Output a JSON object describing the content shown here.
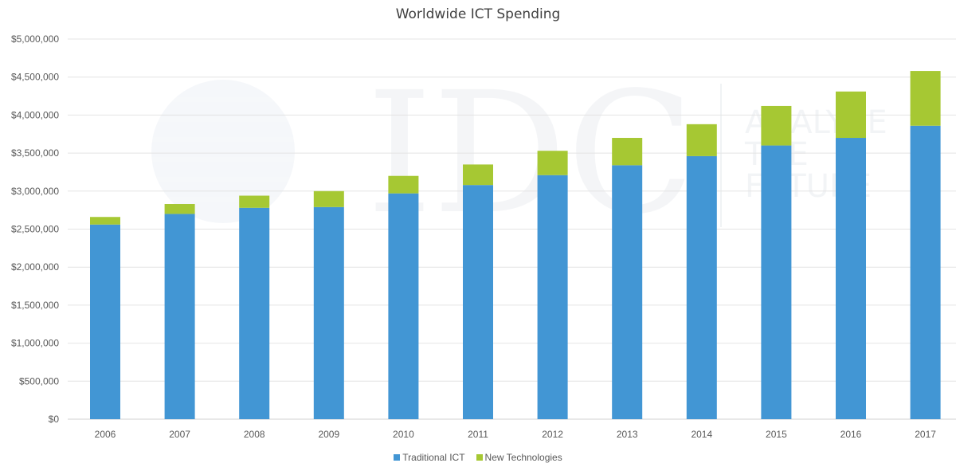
{
  "chart_data": {
    "type": "bar",
    "stacked": true,
    "title": "Worldwide ICT Spending",
    "xlabel": "",
    "ylabel": "",
    "categories": [
      "2006",
      "2007",
      "2008",
      "2009",
      "2010",
      "2011",
      "2012",
      "2013",
      "2014",
      "2015",
      "2016",
      "2017"
    ],
    "series": [
      {
        "name": "Traditional ICT",
        "color": "#4296d4",
        "values": [
          2560000,
          2700000,
          2780000,
          2790000,
          2970000,
          3080000,
          3210000,
          3340000,
          3460000,
          3600000,
          3700000,
          3860000
        ]
      },
      {
        "name": "New Technologies",
        "color": "#a6c833",
        "values": [
          100000,
          130000,
          160000,
          210000,
          230000,
          270000,
          320000,
          360000,
          420000,
          520000,
          610000,
          720000
        ]
      }
    ],
    "ylim": [
      0,
      5000000
    ],
    "yticks": [
      0,
      500000,
      1000000,
      1500000,
      2000000,
      2500000,
      3000000,
      3500000,
      4000000,
      4500000,
      5000000
    ],
    "ytick_labels": [
      "$0",
      "$500,000",
      "$1,000,000",
      "$1,500,000",
      "$2,000,000",
      "$2,500,000",
      "$3,000,000",
      "$3,500,000",
      "$4,000,000",
      "$4,500,000",
      "$5,000,000"
    ],
    "grid": true,
    "legend_position": "bottom"
  },
  "watermark": {
    "logo_text": "IDC",
    "tagline": [
      "ANALYZE",
      "THE",
      "FUTURE"
    ]
  }
}
